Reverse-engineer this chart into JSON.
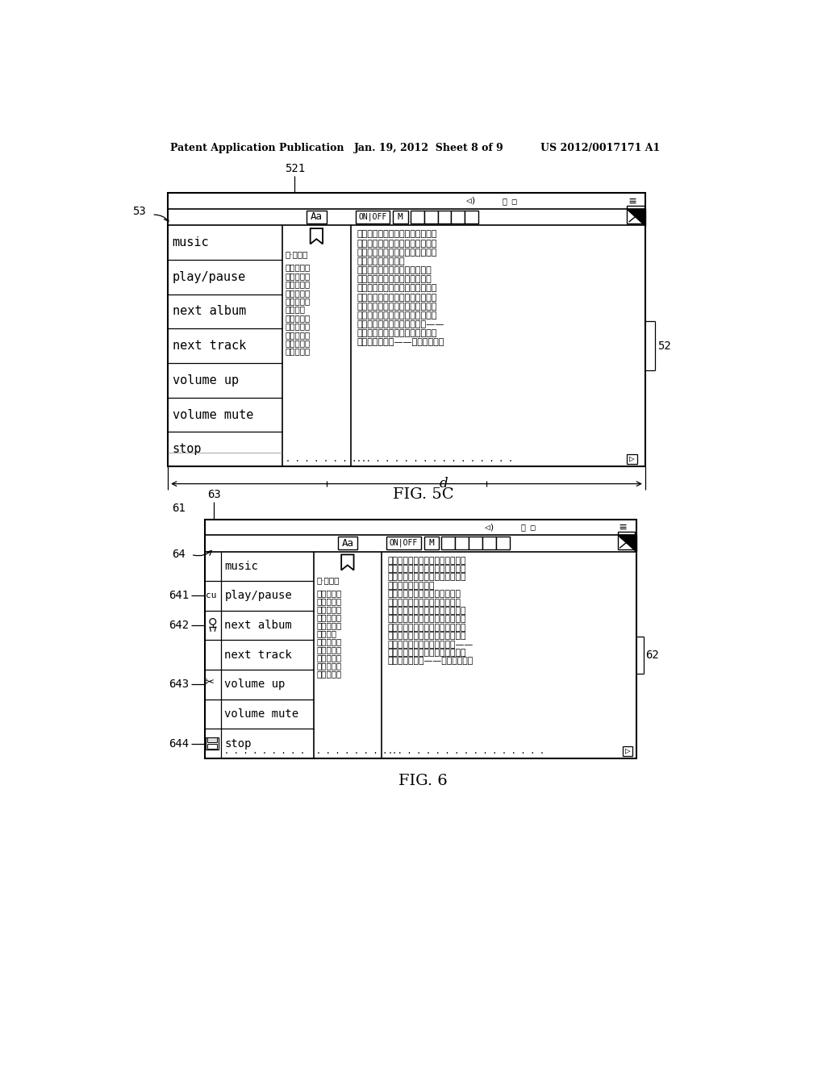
{
  "bg_color": "#ffffff",
  "header_left": "Patent Application Publication",
  "header_mid": "Jan. 19, 2012  Sheet 8 of 9",
  "header_right": "US 2012/0017171 A1",
  "fig5c_label": "FIG. 5C",
  "fig6_label": "FIG. 6",
  "menu_items": [
    "music",
    "play/pause",
    "next album",
    "next track",
    "volume up",
    "volume mute",
    "stop"
  ],
  "ch_col1_lines": [
    "聖·修伯里",
    "的仙童，他",
    "點児的小行",
    "他非常喜愛",
    "的虛榣心傷",
    "。小王子告",
    "太空的旅",
    "行星，各種",
    "感到大人們",
    "只有在其中",
    "小王子才找",
    "人。但點燈"
  ],
  "ch_col2_lines": [
    "人的天地又十分狹小，除了點燈人",
    "他自己，不能容下第二個人。在地",
    "理學家的指點下，孤單的小王子來",
    "到人類居住的地球。",
    "　小王子發現人類缺乏想像力，",
    "只知像鸽鹃那樣重複別人講過的",
    "話。小王子這時越來越思念自己星",
    "球上的那枝小珫瑰。後來，小王子",
    "遇到一隻小狐狸，小王子用耕心征",
    "服了小狐狸，與它結成了親密的朋",
    "友。小狐狸把自己心中的秘密——",
    "肉眼看不見事務的本質，只有用心",
    "靈才能洞察一切——作為禮物，送"
  ],
  "label_521": "521",
  "label_52": "52",
  "label_53": "53",
  "label_d": "d",
  "label_61": "61",
  "label_62": "62",
  "label_63": "63",
  "label_64": "64",
  "label_641": "641",
  "label_642": "642",
  "label_643": "643",
  "label_644": "644"
}
